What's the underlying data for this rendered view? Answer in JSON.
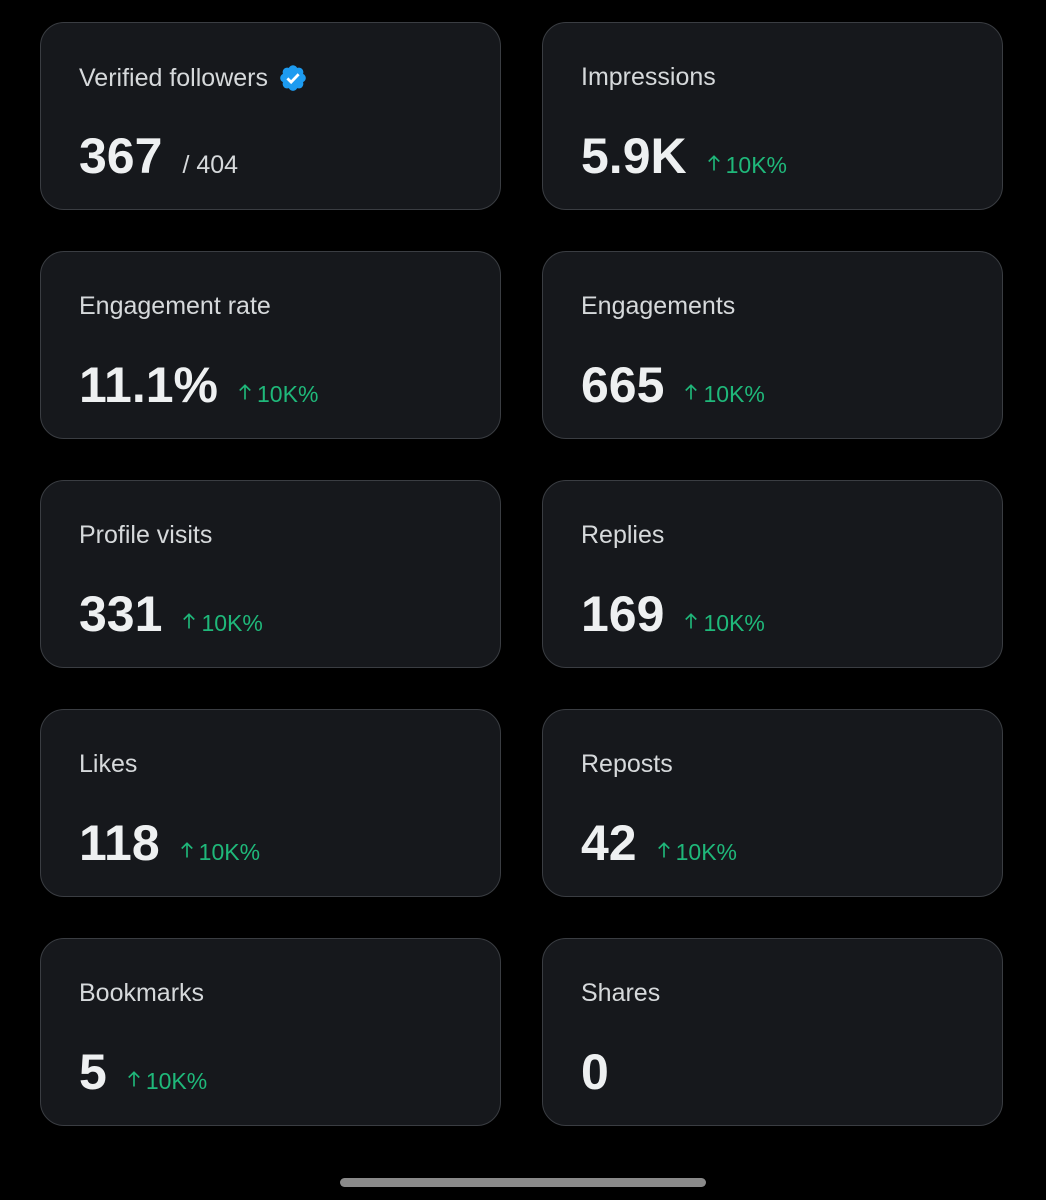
{
  "cards": [
    {
      "label": "Verified followers",
      "value": "367",
      "total": "/ 404",
      "verified": true
    },
    {
      "label": "Impressions",
      "value": "5.9K",
      "change": "10K%"
    },
    {
      "label": "Engagement rate",
      "value": "11.1%",
      "change": "10K%"
    },
    {
      "label": "Engagements",
      "value": "665",
      "change": "10K%"
    },
    {
      "label": "Profile visits",
      "value": "331",
      "change": "10K%"
    },
    {
      "label": "Replies",
      "value": "169",
      "change": "10K%"
    },
    {
      "label": "Likes",
      "value": "118",
      "change": "10K%"
    },
    {
      "label": "Reposts",
      "value": "42",
      "change": "10K%"
    },
    {
      "label": "Bookmarks",
      "value": "5",
      "change": "10K%"
    },
    {
      "label": "Shares",
      "value": "0"
    }
  ]
}
